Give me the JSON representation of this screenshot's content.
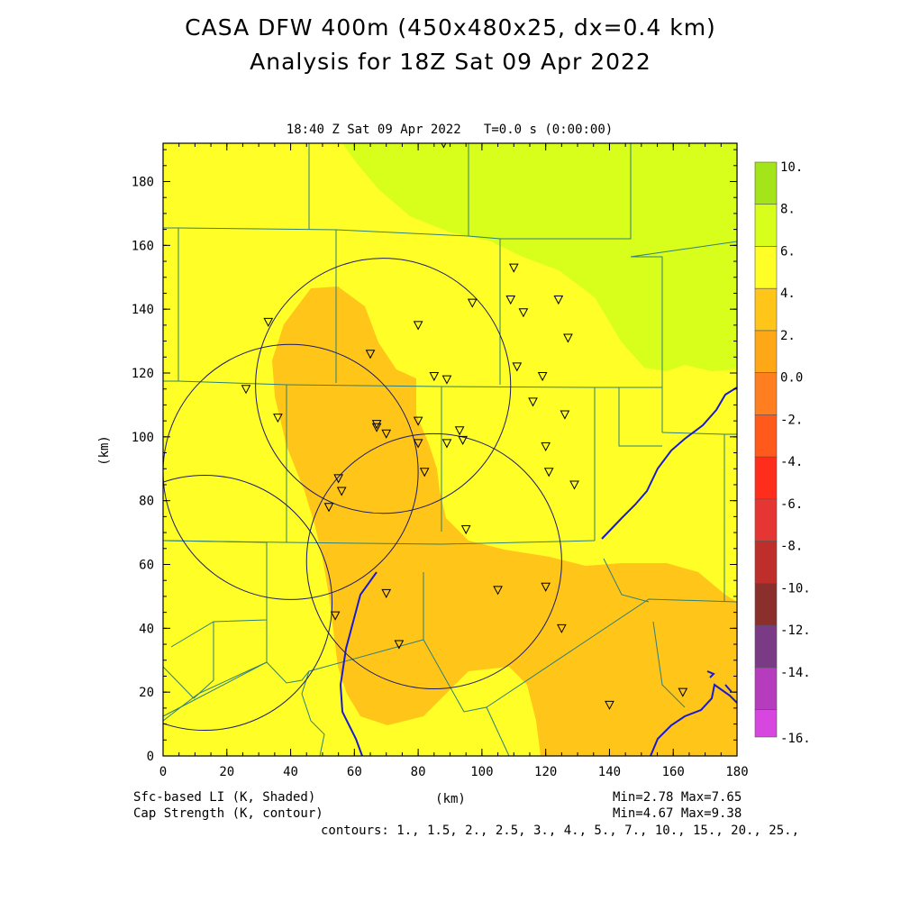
{
  "header": {
    "title_line1": "CASA DFW 400m (450x480x25, dx=0.4 km)",
    "title_line2": "Analysis for 18Z Sat 09 Apr 2022",
    "subtitle": "18:40 Z Sat 09 Apr 2022   T=0.0 s (0:00:00)"
  },
  "axes": {
    "x_label": "(km)",
    "y_label": "(km)",
    "x_ticks": [
      "0",
      "20",
      "40",
      "60",
      "80",
      "100",
      "120",
      "140",
      "160",
      "180"
    ],
    "y_ticks": [
      "0",
      "20",
      "40",
      "60",
      "80",
      "100",
      "120",
      "140",
      "160",
      "180"
    ],
    "xlim": [
      0,
      180
    ],
    "ylim": [
      0,
      192
    ]
  },
  "colorbar": {
    "labels": [
      "10.",
      "8.",
      "6.",
      "4.",
      "2.",
      "0.0",
      "-2.",
      "-4.",
      "-6.",
      "-8.",
      "-10.",
      "-12.",
      "-14.",
      "-16."
    ],
    "colors": [
      "#a4e51a",
      "#d8ff1c",
      "#ffff27",
      "#ffc619",
      "#ffa817",
      "#ff7e1f",
      "#ff5a1b",
      "#ff2d1c",
      "#e53633",
      "#be2f2c",
      "#8a2f2b",
      "#7a3a86",
      "#b53cbc",
      "#d747e0"
    ]
  },
  "footer": {
    "left1": "Sfc-based LI (K, Shaded)",
    "left2": "Cap Strength (K, contour)",
    "center": "(km)",
    "stats1": "Min=2.78 Max=7.65",
    "stats2": "Min=4.67 Max=9.38",
    "contours": "contours: 1., 1.5, 2., 2.5, 3., 4., 5., 7., 10., 15., 20., 25.,"
  },
  "radars": [
    {
      "x": 69,
      "y": 116
    },
    {
      "x": 40,
      "y": 89
    },
    {
      "x": 85,
      "y": 61
    },
    {
      "x": 13,
      "y": 48
    }
  ],
  "stations": [
    [
      88,
      192
    ],
    [
      110,
      153
    ],
    [
      97,
      142
    ],
    [
      109,
      143
    ],
    [
      113,
      139
    ],
    [
      124,
      143
    ],
    [
      33,
      136
    ],
    [
      80,
      135
    ],
    [
      127,
      131
    ],
    [
      65,
      126
    ],
    [
      111,
      122
    ],
    [
      85,
      119
    ],
    [
      89,
      118
    ],
    [
      119,
      119
    ],
    [
      26,
      115
    ],
    [
      116,
      111
    ],
    [
      126,
      107
    ],
    [
      36,
      106
    ],
    [
      80,
      105
    ],
    [
      67,
      104
    ],
    [
      67,
      103
    ],
    [
      70,
      101
    ],
    [
      93,
      102
    ],
    [
      94,
      99
    ],
    [
      89,
      98
    ],
    [
      80,
      98
    ],
    [
      120,
      97
    ],
    [
      82,
      89
    ],
    [
      121,
      89
    ],
    [
      55,
      87
    ],
    [
      56,
      83
    ],
    [
      129,
      85
    ],
    [
      52,
      78
    ],
    [
      95,
      71
    ],
    [
      70,
      51
    ],
    [
      105,
      52
    ],
    [
      120,
      53
    ],
    [
      54,
      44
    ],
    [
      125,
      40
    ],
    [
      74,
      35
    ],
    [
      140,
      16
    ],
    [
      163,
      20
    ]
  ]
}
